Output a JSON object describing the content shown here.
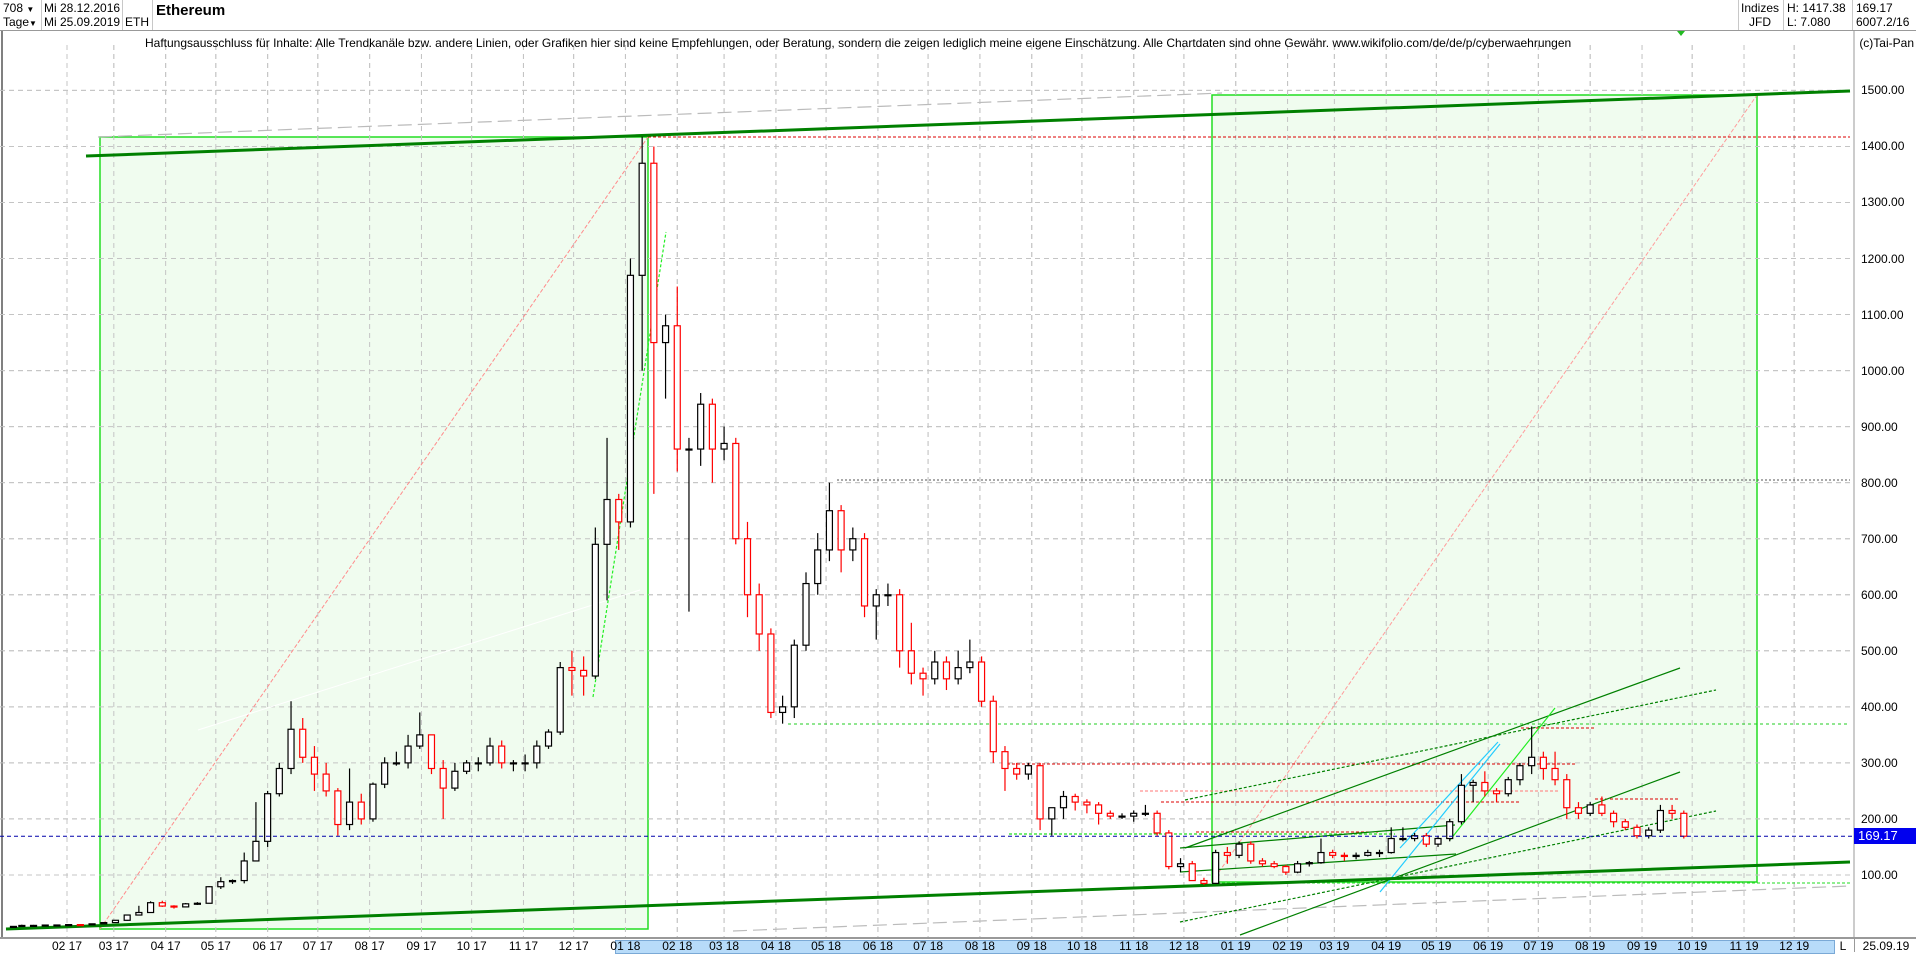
{
  "header": {
    "bar_count": "708",
    "interval": "Tage",
    "date_from": "Mi 28.12.2016",
    "date_to": "Mi 25.09.2019",
    "symbol": "ETH",
    "title": "Ethereum",
    "market": "Indizes",
    "exchange": "JFD",
    "high": "H: 1417.38",
    "low": "L: 7.080",
    "last": "169.17",
    "extra": "6007.2/16"
  },
  "disclaimer": "Haftungsausschluss für Inhalte: Alle Trendkanäle bzw. andere Linien, oder Grafiken hier sind keine Empfehlungen, oder Beratung, sondern die zeigen lediglich meine eigene Einschätzung. Alle Chartdaten sind ohne Gewähr.  www.wikifolio.com/de/de/p/cyberwaehrungen",
  "copyright": "(c)Tai-Pan",
  "axis": {
    "end_marker": "L",
    "end_date": "25.09.19",
    "current_price_label": "169.17"
  },
  "colors": {
    "up": "#000000",
    "down": "#ff0000",
    "trend": "#008000",
    "box_fill": "#f0fcef",
    "box_border": "#22dd22",
    "highlight": "#b7dbf9",
    "price_tag": "#0000ee"
  },
  "chart_data": {
    "type": "candlestick",
    "title": "Ethereum",
    "ylim": [
      0,
      1600
    ],
    "grid": true,
    "current_price": 169.17,
    "y_ticks": [
      "100.00",
      "200.00",
      "300.00",
      "400.00",
      "500.00",
      "600.00",
      "700.00",
      "800.00",
      "900.00",
      "1000.00",
      "1100.00",
      "1200.00",
      "1300.00",
      "1400.00",
      "1500.00"
    ],
    "x_ticks": [
      {
        "date": "2017-02-01",
        "label": "02 17"
      },
      {
        "date": "2017-03-01",
        "label": "03 17"
      },
      {
        "date": "2017-04-01",
        "label": "04 17"
      },
      {
        "date": "2017-05-01",
        "label": "05 17"
      },
      {
        "date": "2017-06-01",
        "label": "06 17"
      },
      {
        "date": "2017-07-01",
        "label": "07 17"
      },
      {
        "date": "2017-08-01",
        "label": "08 17"
      },
      {
        "date": "2017-09-01",
        "label": "09 17"
      },
      {
        "date": "2017-10-01",
        "label": "10 17"
      },
      {
        "date": "2017-11-01",
        "label": "11 17"
      },
      {
        "date": "2017-12-01",
        "label": "12 17"
      },
      {
        "date": "2018-01-01",
        "label": "01 18"
      },
      {
        "date": "2018-02-01",
        "label": "02 18"
      },
      {
        "date": "2018-03-01",
        "label": "03 18"
      },
      {
        "date": "2018-04-01",
        "label": "04 18"
      },
      {
        "date": "2018-05-01",
        "label": "05 18"
      },
      {
        "date": "2018-06-01",
        "label": "06 18"
      },
      {
        "date": "2018-07-01",
        "label": "07 18"
      },
      {
        "date": "2018-08-01",
        "label": "08 18"
      },
      {
        "date": "2018-09-01",
        "label": "09 18"
      },
      {
        "date": "2018-10-01",
        "label": "10 18"
      },
      {
        "date": "2018-11-01",
        "label": "11 18"
      },
      {
        "date": "2018-12-01",
        "label": "12 18"
      },
      {
        "date": "2019-01-01",
        "label": "01 19"
      },
      {
        "date": "2019-02-01",
        "label": "02 19"
      },
      {
        "date": "2019-03-01",
        "label": "03 19"
      },
      {
        "date": "2019-04-01",
        "label": "04 19"
      },
      {
        "date": "2019-05-01",
        "label": "05 19"
      },
      {
        "date": "2019-06-01",
        "label": "06 19"
      },
      {
        "date": "2019-07-01",
        "label": "07 19"
      },
      {
        "date": "2019-08-01",
        "label": "08 19"
      },
      {
        "date": "2019-09-01",
        "label": "09 19"
      },
      {
        "date": "2019-10-01",
        "label": "10 19"
      },
      {
        "date": "2019-11-01",
        "label": "11 19"
      },
      {
        "date": "2019-12-01",
        "label": "12 19"
      }
    ],
    "candles_columns": [
      "date",
      "open",
      "high",
      "low",
      "close"
    ],
    "candles": [
      [
        "2016-12-28",
        7.2,
        8.4,
        7.08,
        8.2
      ],
      [
        "2017-01-02",
        8.2,
        11.3,
        8.2,
        9.9
      ],
      [
        "2017-01-09",
        9.9,
        10.9,
        9.5,
        10.0
      ],
      [
        "2017-01-16",
        10.0,
        10.9,
        9.9,
        10.6
      ],
      [
        "2017-01-23",
        10.6,
        10.8,
        10.4,
        10.7
      ],
      [
        "2017-01-30",
        10.7,
        11.6,
        10.6,
        11.4
      ],
      [
        "2017-02-06",
        11.4,
        11.6,
        10.9,
        11.2
      ],
      [
        "2017-02-13",
        11.2,
        13.1,
        11.0,
        12.8
      ],
      [
        "2017-02-20",
        12.8,
        15.4,
        12.5,
        15.0
      ],
      [
        "2017-02-27",
        15.0,
        19.6,
        15.0,
        19.1
      ],
      [
        "2017-03-06",
        19.1,
        29,
        18.4,
        28.5
      ],
      [
        "2017-03-13",
        28.5,
        45,
        28.2,
        33
      ],
      [
        "2017-03-20",
        33,
        53,
        33,
        50.5
      ],
      [
        "2017-03-27",
        50.5,
        54,
        43,
        44.5
      ],
      [
        "2017-04-03",
        44.5,
        46,
        40,
        43
      ],
      [
        "2017-04-10",
        43,
        50,
        42,
        48.5
      ],
      [
        "2017-04-17",
        48.5,
        51.5,
        46.5,
        49.5
      ],
      [
        "2017-04-24",
        49.5,
        80,
        49,
        79
      ],
      [
        "2017-05-01",
        79,
        96,
        75,
        88
      ],
      [
        "2017-05-08",
        88,
        92,
        84,
        90
      ],
      [
        "2017-05-15",
        90,
        140,
        85,
        125
      ],
      [
        "2017-05-22",
        125,
        230,
        124,
        160
      ],
      [
        "2017-05-29",
        160,
        250,
        150,
        245
      ],
      [
        "2017-06-05",
        245,
        300,
        240,
        290
      ],
      [
        "2017-06-12",
        290,
        410,
        280,
        360
      ],
      [
        "2017-06-19",
        360,
        380,
        300,
        310
      ],
      [
        "2017-06-26",
        310,
        330,
        250,
        280
      ],
      [
        "2017-07-03",
        280,
        300,
        240,
        250
      ],
      [
        "2017-07-10",
        250,
        255,
        170,
        190
      ],
      [
        "2017-07-17",
        190,
        290,
        180,
        230
      ],
      [
        "2017-07-24",
        230,
        245,
        190,
        200
      ],
      [
        "2017-07-31",
        200,
        265,
        195,
        262
      ],
      [
        "2017-08-07",
        262,
        310,
        255,
        300
      ],
      [
        "2017-08-14",
        300,
        320,
        295,
        300
      ],
      [
        "2017-08-21",
        300,
        350,
        290,
        330
      ],
      [
        "2017-08-28",
        330,
        390,
        325,
        350
      ],
      [
        "2017-09-04",
        350,
        350,
        280,
        290
      ],
      [
        "2017-09-11",
        290,
        305,
        200,
        255
      ],
      [
        "2017-09-18",
        255,
        300,
        250,
        285
      ],
      [
        "2017-09-25",
        285,
        305,
        280,
        300
      ],
      [
        "2017-10-02",
        300,
        310,
        285,
        300
      ],
      [
        "2017-10-09",
        300,
        345,
        295,
        330
      ],
      [
        "2017-10-16",
        330,
        340,
        290,
        300
      ],
      [
        "2017-10-23",
        300,
        305,
        285,
        300
      ],
      [
        "2017-10-30",
        300,
        315,
        285,
        300
      ],
      [
        "2017-11-06",
        300,
        340,
        290,
        330
      ],
      [
        "2017-11-13",
        330,
        360,
        325,
        355
      ],
      [
        "2017-11-20",
        355,
        480,
        350,
        470
      ],
      [
        "2017-11-27",
        470,
        500,
        420,
        465
      ],
      [
        "2017-12-04",
        465,
        490,
        420,
        455
      ],
      [
        "2017-12-11",
        455,
        720,
        450,
        690
      ],
      [
        "2017-12-18",
        690,
        880,
        590,
        770
      ],
      [
        "2017-12-25",
        770,
        780,
        680,
        730
      ],
      [
        "2018-01-01",
        730,
        1200,
        720,
        1170
      ],
      [
        "2018-01-08",
        1170,
        1417.38,
        1000,
        1370
      ],
      [
        "2018-01-15",
        1370,
        1400,
        780,
        1050
      ],
      [
        "2018-01-22",
        1050,
        1100,
        950,
        1080
      ],
      [
        "2018-01-29",
        1080,
        1150,
        820,
        860
      ],
      [
        "2018-02-05",
        860,
        880,
        570,
        860
      ],
      [
        "2018-02-12",
        860,
        960,
        830,
        940
      ],
      [
        "2018-02-19",
        940,
        950,
        800,
        860
      ],
      [
        "2018-02-26",
        860,
        900,
        840,
        870
      ],
      [
        "2018-03-05",
        870,
        880,
        690,
        700
      ],
      [
        "2018-03-12",
        700,
        730,
        560,
        600
      ],
      [
        "2018-03-19",
        600,
        620,
        500,
        530
      ],
      [
        "2018-03-26",
        530,
        540,
        380,
        390
      ],
      [
        "2018-04-02",
        390,
        420,
        370,
        400
      ],
      [
        "2018-04-09",
        400,
        520,
        380,
        510
      ],
      [
        "2018-04-16",
        510,
        640,
        500,
        620
      ],
      [
        "2018-04-23",
        620,
        710,
        600,
        680
      ],
      [
        "2018-04-30",
        680,
        800,
        660,
        750
      ],
      [
        "2018-05-07",
        750,
        760,
        640,
        680
      ],
      [
        "2018-05-14",
        680,
        720,
        660,
        700
      ],
      [
        "2018-05-21",
        700,
        710,
        560,
        580
      ],
      [
        "2018-05-28",
        580,
        610,
        520,
        600
      ],
      [
        "2018-06-04",
        600,
        620,
        580,
        600
      ],
      [
        "2018-06-11",
        600,
        610,
        470,
        500
      ],
      [
        "2018-06-18",
        500,
        550,
        440,
        460
      ],
      [
        "2018-06-25",
        460,
        470,
        420,
        450
      ],
      [
        "2018-07-02",
        450,
        500,
        440,
        480
      ],
      [
        "2018-07-09",
        480,
        490,
        430,
        450
      ],
      [
        "2018-07-16",
        450,
        500,
        440,
        470
      ],
      [
        "2018-07-23",
        470,
        520,
        460,
        480
      ],
      [
        "2018-07-30",
        480,
        490,
        400,
        410
      ],
      [
        "2018-08-06",
        410,
        420,
        300,
        320
      ],
      [
        "2018-08-13",
        320,
        330,
        250,
        290
      ],
      [
        "2018-08-20",
        290,
        300,
        270,
        280
      ],
      [
        "2018-08-27",
        280,
        300,
        270,
        295
      ],
      [
        "2018-09-03",
        295,
        300,
        180,
        200
      ],
      [
        "2018-09-10",
        200,
        220,
        170,
        220
      ],
      [
        "2018-09-17",
        220,
        250,
        200,
        240
      ],
      [
        "2018-09-24",
        240,
        245,
        215,
        230
      ],
      [
        "2018-10-01",
        230,
        235,
        210,
        225
      ],
      [
        "2018-10-08",
        225,
        230,
        190,
        210
      ],
      [
        "2018-10-15",
        210,
        215,
        200,
        205
      ],
      [
        "2018-10-22",
        205,
        210,
        200,
        205
      ],
      [
        "2018-10-29",
        205,
        215,
        195,
        210
      ],
      [
        "2018-11-05",
        210,
        225,
        205,
        210
      ],
      [
        "2018-11-12",
        210,
        215,
        170,
        175
      ],
      [
        "2018-11-19",
        175,
        180,
        110,
        115
      ],
      [
        "2018-11-26",
        115,
        130,
        105,
        120
      ],
      [
        "2018-12-03",
        120,
        125,
        90,
        90
      ],
      [
        "2018-12-10",
        90,
        95,
        82,
        85
      ],
      [
        "2018-12-17",
        85,
        145,
        84,
        140
      ],
      [
        "2018-12-24",
        140,
        150,
        120,
        135
      ],
      [
        "2018-12-31",
        135,
        160,
        130,
        155
      ],
      [
        "2019-01-07",
        155,
        160,
        120,
        125
      ],
      [
        "2019-01-14",
        125,
        130,
        115,
        120
      ],
      [
        "2019-01-21",
        120,
        125,
        112,
        115
      ],
      [
        "2019-01-28",
        115,
        118,
        100,
        105
      ],
      [
        "2019-02-04",
        105,
        125,
        103,
        120
      ],
      [
        "2019-02-11",
        120,
        125,
        115,
        122
      ],
      [
        "2019-02-18",
        122,
        165,
        120,
        140
      ],
      [
        "2019-02-25",
        140,
        145,
        130,
        135
      ],
      [
        "2019-03-04",
        135,
        140,
        125,
        133
      ],
      [
        "2019-03-11",
        133,
        140,
        128,
        135
      ],
      [
        "2019-03-18",
        135,
        145,
        133,
        140
      ],
      [
        "2019-03-25",
        140,
        145,
        132,
        140
      ],
      [
        "2019-04-01",
        140,
        185,
        138,
        165
      ],
      [
        "2019-04-08",
        165,
        185,
        160,
        165
      ],
      [
        "2019-04-15",
        165,
        175,
        160,
        170
      ],
      [
        "2019-04-22",
        170,
        175,
        150,
        155
      ],
      [
        "2019-04-29",
        155,
        170,
        150,
        165
      ],
      [
        "2019-05-06",
        165,
        200,
        160,
        195
      ],
      [
        "2019-05-13",
        195,
        280,
        190,
        260
      ],
      [
        "2019-05-20",
        260,
        270,
        230,
        265
      ],
      [
        "2019-05-27",
        265,
        285,
        240,
        250
      ],
      [
        "2019-06-03",
        250,
        255,
        230,
        245
      ],
      [
        "2019-06-10",
        245,
        275,
        240,
        270
      ],
      [
        "2019-06-17",
        270,
        300,
        260,
        295
      ],
      [
        "2019-06-24",
        295,
        365,
        280,
        310
      ],
      [
        "2019-07-01",
        310,
        320,
        270,
        290
      ],
      [
        "2019-07-08",
        290,
        320,
        260,
        270
      ],
      [
        "2019-07-15",
        270,
        280,
        200,
        220
      ],
      [
        "2019-07-22",
        220,
        230,
        200,
        210
      ],
      [
        "2019-07-29",
        210,
        230,
        205,
        225
      ],
      [
        "2019-08-05",
        225,
        240,
        205,
        210
      ],
      [
        "2019-08-12",
        210,
        215,
        185,
        195
      ],
      [
        "2019-08-19",
        195,
        200,
        180,
        185
      ],
      [
        "2019-08-26",
        185,
        190,
        165,
        170
      ],
      [
        "2019-09-02",
        170,
        185,
        165,
        180
      ],
      [
        "2019-09-09",
        180,
        225,
        175,
        215
      ],
      [
        "2019-09-16",
        215,
        225,
        200,
        210
      ],
      [
        "2019-09-23",
        210,
        215,
        165,
        169.17
      ]
    ]
  }
}
